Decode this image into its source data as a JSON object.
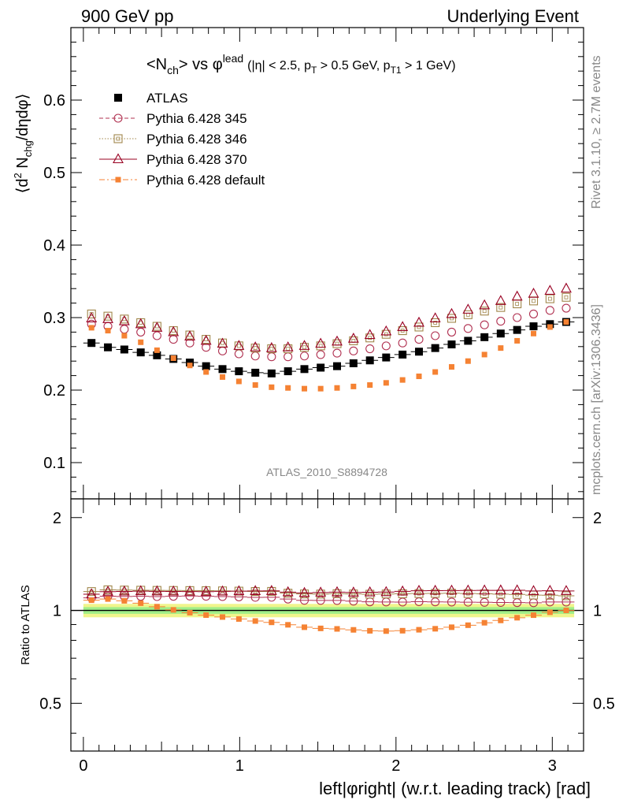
{
  "chart_data": {
    "type": "scatter",
    "header_left": "900 GeV pp",
    "header_right": "Underlying Event",
    "title": {
      "main": "<N",
      "main_sub": "ch",
      "main_rest": "> vs φ",
      "main_sup": "lead",
      "cut_open": "(|η| < 2.5, p",
      "cut_sub1": "T",
      "cut_mid": " > 0.5 GeV, p",
      "cut_sub2": "T1",
      "cut_close": " > 1 GeV)"
    },
    "ylabel": {
      "p1": "⟨d",
      "sup": "2",
      "p2": " N",
      "sub": "chg",
      "p3": "/dηdφ⟩"
    },
    "ratio_ylabel": "Ratio to ATLAS",
    "xlabel": "left|φright| (w.r.t. leading track) [rad]",
    "analysis_label": "ATLAS_2010_S8894728",
    "side_label_top": "Rivet 3.1.10, ≥ 2.7M events",
    "side_label_bottom": "mcplots.cern.ch [arXiv:1306.3436]",
    "xlim": [
      -0.08,
      3.2
    ],
    "ylim": [
      0.05,
      0.7
    ],
    "ratio_ylim": [
      0.35,
      2.3
    ],
    "x_ticks": [
      "0",
      "1",
      "2",
      "3"
    ],
    "y_ticks": [
      "0.1",
      "0.2",
      "0.3",
      "0.4",
      "0.5",
      "0.6"
    ],
    "ratio_ticks": [
      "0.5",
      "1",
      "2"
    ],
    "x": [
      0.052,
      0.157,
      0.262,
      0.367,
      0.471,
      0.576,
      0.681,
      0.785,
      0.89,
      0.995,
      1.1,
      1.204,
      1.309,
      1.414,
      1.518,
      1.623,
      1.728,
      1.833,
      1.937,
      2.042,
      2.147,
      2.251,
      2.356,
      2.461,
      2.566,
      2.67,
      2.775,
      2.88,
      2.985,
      3.089
    ],
    "series": [
      {
        "name": "ATLAS",
        "color": "#000000",
        "marker": "square-filled",
        "values": [
          0.265,
          0.259,
          0.256,
          0.252,
          0.248,
          0.243,
          0.238,
          0.233,
          0.229,
          0.226,
          0.224,
          0.223,
          0.226,
          0.229,
          0.231,
          0.233,
          0.237,
          0.241,
          0.245,
          0.249,
          0.253,
          0.258,
          0.263,
          0.268,
          0.273,
          0.278,
          0.283,
          0.288,
          0.291,
          0.294
        ]
      },
      {
        "name": "Pythia 6.428 345",
        "color": "#b03050",
        "marker": "circle-open",
        "line": "dashed",
        "values": [
          0.291,
          0.288,
          0.284,
          0.28,
          0.275,
          0.27,
          0.265,
          0.259,
          0.254,
          0.25,
          0.247,
          0.246,
          0.246,
          0.247,
          0.249,
          0.251,
          0.254,
          0.257,
          0.261,
          0.265,
          0.27,
          0.275,
          0.28,
          0.285,
          0.29,
          0.295,
          0.3,
          0.305,
          0.31,
          0.313
        ]
      },
      {
        "name": "Pythia 6.428 346",
        "color": "#a0864a",
        "marker": "square-open",
        "line": "dotted",
        "values": [
          0.305,
          0.302,
          0.298,
          0.293,
          0.288,
          0.282,
          0.276,
          0.27,
          0.265,
          0.261,
          0.258,
          0.257,
          0.257,
          0.259,
          0.261,
          0.264,
          0.268,
          0.272,
          0.277,
          0.282,
          0.287,
          0.293,
          0.299,
          0.304,
          0.309,
          0.314,
          0.319,
          0.323,
          0.326,
          0.328
        ]
      },
      {
        "name": "Pythia 6.428 370",
        "color": "#990022",
        "marker": "triangle-open",
        "line": "solid",
        "values": [
          0.299,
          0.298,
          0.295,
          0.291,
          0.286,
          0.28,
          0.274,
          0.268,
          0.264,
          0.261,
          0.259,
          0.258,
          0.259,
          0.261,
          0.264,
          0.267,
          0.271,
          0.276,
          0.281,
          0.287,
          0.293,
          0.299,
          0.305,
          0.311,
          0.317,
          0.323,
          0.329,
          0.333,
          0.337,
          0.34
        ]
      },
      {
        "name": "Pythia 6.428 default",
        "color": "#f58233",
        "marker": "square-small-filled",
        "line": "dashdot",
        "values": [
          0.286,
          0.282,
          0.275,
          0.266,
          0.255,
          0.244,
          0.234,
          0.225,
          0.218,
          0.212,
          0.207,
          0.204,
          0.203,
          0.202,
          0.202,
          0.203,
          0.205,
          0.207,
          0.21,
          0.214,
          0.219,
          0.225,
          0.232,
          0.24,
          0.249,
          0.258,
          0.268,
          0.278,
          0.287,
          0.294
        ]
      }
    ],
    "ratio_band_outer": 0.05,
    "ratio_band_inner": 0.025,
    "ratio_band_outer_color": "#f0f58c",
    "ratio_band_inner_color": "#a0ee88"
  }
}
